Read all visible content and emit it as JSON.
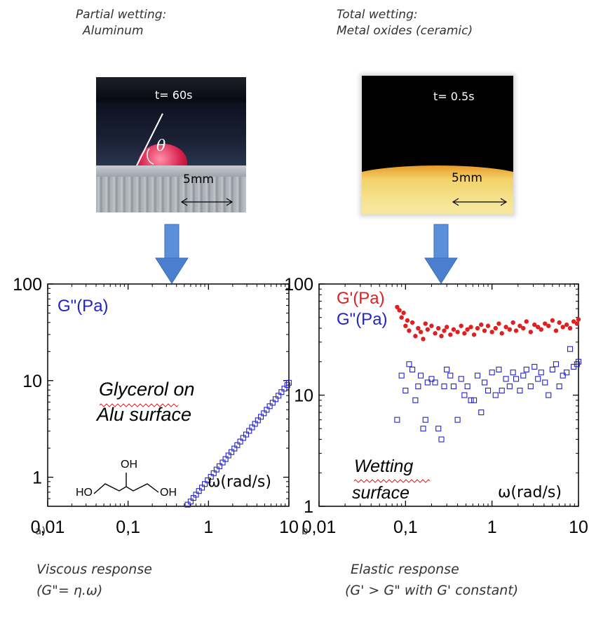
{
  "captions": {
    "left_line1": "Partial wetting:",
    "left_line2": "Aluminum",
    "right_line1": "Total wetting:",
    "right_line2": "Metal oxides (ceramic)"
  },
  "photos": {
    "left": {
      "time": "t= 60s",
      "scale": "5mm",
      "angle_symbol": "θ"
    },
    "right": {
      "time": "t= 0.5s",
      "scale": "5mm"
    }
  },
  "colors": {
    "arrow": "#4a7fd0",
    "gpp": "#2323c8",
    "gp": "#e02020",
    "axis": "#000000"
  },
  "panels": {
    "a": {
      "letter": "a)",
      "response_line1": "Viscous response",
      "response_line2": "(G\"= η.ω)"
    },
    "b": {
      "letter": "b",
      "response_line1": "Elastic response",
      "response_line2": "(G' > G\" with G' constant)"
    }
  },
  "chart_data": [
    {
      "type": "scatter",
      "xscale": "log",
      "yscale": "log",
      "xlim": [
        0.01,
        10
      ],
      "ylim": [
        0.5,
        100
      ],
      "xticks": [
        "0,01",
        "0,1",
        "1",
        "10"
      ],
      "yticks": [
        "1",
        "10",
        "100"
      ],
      "xlabel": "ω(rad/s)",
      "legend": [
        "G\"(Pa)"
      ],
      "annotation_line1": "Glycerol on",
      "annotation_line2": "Alu surface",
      "molecule_labels": [
        "OH",
        "HO",
        "OH"
      ],
      "series": [
        {
          "name": "G\"(Pa)",
          "marker": "open-square",
          "x": [
            0.55,
            0.6,
            0.65,
            0.7,
            0.76,
            0.83,
            0.9,
            0.98,
            1.07,
            1.16,
            1.26,
            1.37,
            1.5,
            1.63,
            1.77,
            1.93,
            2.1,
            2.28,
            2.48,
            2.7,
            2.94,
            3.2,
            3.48,
            3.79,
            4.12,
            4.48,
            4.88,
            5.3,
            5.77,
            6.28,
            6.83,
            7.43,
            8.08,
            8.79,
            9.56,
            10
          ],
          "y": [
            0.52,
            0.56,
            0.61,
            0.66,
            0.72,
            0.78,
            0.85,
            0.93,
            1.01,
            1.1,
            1.2,
            1.3,
            1.42,
            1.54,
            1.68,
            1.82,
            1.98,
            2.15,
            2.34,
            2.55,
            2.77,
            3.02,
            3.28,
            3.57,
            3.88,
            4.22,
            4.59,
            4.99,
            5.43,
            5.9,
            6.42,
            6.98,
            7.6,
            8.26,
            8.99,
            9.5
          ]
        }
      ]
    },
    {
      "type": "scatter",
      "xscale": "log",
      "yscale": "log",
      "xlim": [
        0.01,
        10
      ],
      "ylim": [
        1,
        100
      ],
      "xticks": [
        "0,01",
        "0,1",
        "1",
        "10"
      ],
      "yticks": [
        "1",
        "10",
        "100"
      ],
      "xlabel": "ω(rad/s)",
      "legend": [
        "G'(Pa)",
        "G\"(Pa)"
      ],
      "annotation_line1": "Wetting",
      "annotation_line2": "surface",
      "series": [
        {
          "name": "G'(Pa)",
          "marker": "filled-circle",
          "x": [
            0.08,
            0.085,
            0.09,
            0.095,
            0.1,
            0.105,
            0.11,
            0.12,
            0.13,
            0.14,
            0.15,
            0.16,
            0.17,
            0.18,
            0.2,
            0.22,
            0.24,
            0.26,
            0.28,
            0.3,
            0.33,
            0.36,
            0.4,
            0.44,
            0.48,
            0.52,
            0.57,
            0.62,
            0.68,
            0.75,
            0.82,
            0.9,
            1.0,
            1.1,
            1.2,
            1.3,
            1.45,
            1.6,
            1.75,
            1.9,
            2.1,
            2.3,
            2.5,
            2.8,
            3.1,
            3.4,
            3.7,
            4.1,
            4.5,
            5.0,
            5.5,
            6.0,
            6.6,
            7.3,
            8.0,
            8.8,
            9.6,
            10
          ],
          "y": [
            62,
            58,
            50,
            55,
            42,
            47,
            38,
            45,
            34,
            40,
            37,
            32,
            44,
            39,
            42,
            36,
            40,
            34,
            38,
            41,
            35,
            39,
            37,
            42,
            36,
            39,
            41,
            35,
            40,
            43,
            38,
            42,
            37,
            40,
            44,
            36,
            41,
            39,
            45,
            38,
            42,
            40,
            46,
            37,
            43,
            41,
            39,
            44,
            42,
            47,
            38,
            45,
            41,
            43,
            40,
            46,
            44,
            48
          ]
        },
        {
          "name": "G\"(Pa)",
          "marker": "open-square",
          "x": [
            0.08,
            0.09,
            0.1,
            0.11,
            0.12,
            0.13,
            0.14,
            0.15,
            0.16,
            0.17,
            0.18,
            0.2,
            0.22,
            0.24,
            0.26,
            0.28,
            0.3,
            0.33,
            0.36,
            0.4,
            0.44,
            0.48,
            0.52,
            0.57,
            0.62,
            0.68,
            0.75,
            0.82,
            0.9,
            1.0,
            1.1,
            1.2,
            1.3,
            1.45,
            1.6,
            1.75,
            1.9,
            2.1,
            2.3,
            2.5,
            2.8,
            3.1,
            3.4,
            3.7,
            4.1,
            4.5,
            5.0,
            5.5,
            6.0,
            6.6,
            7.3,
            8.0,
            8.8,
            9.6,
            10
          ],
          "y": [
            6,
            15,
            11,
            19,
            17,
            9,
            12,
            15,
            5,
            6,
            13,
            14,
            13,
            5,
            4,
            12,
            17,
            15,
            12,
            6,
            14,
            10,
            12,
            9,
            9,
            15,
            7,
            13,
            11,
            16,
            10,
            17,
            11,
            14,
            12,
            16,
            14,
            11,
            15,
            17,
            12,
            18,
            14,
            16,
            13,
            10,
            17,
            19,
            12,
            15,
            16,
            26,
            18,
            19,
            20
          ]
        }
      ]
    }
  ]
}
